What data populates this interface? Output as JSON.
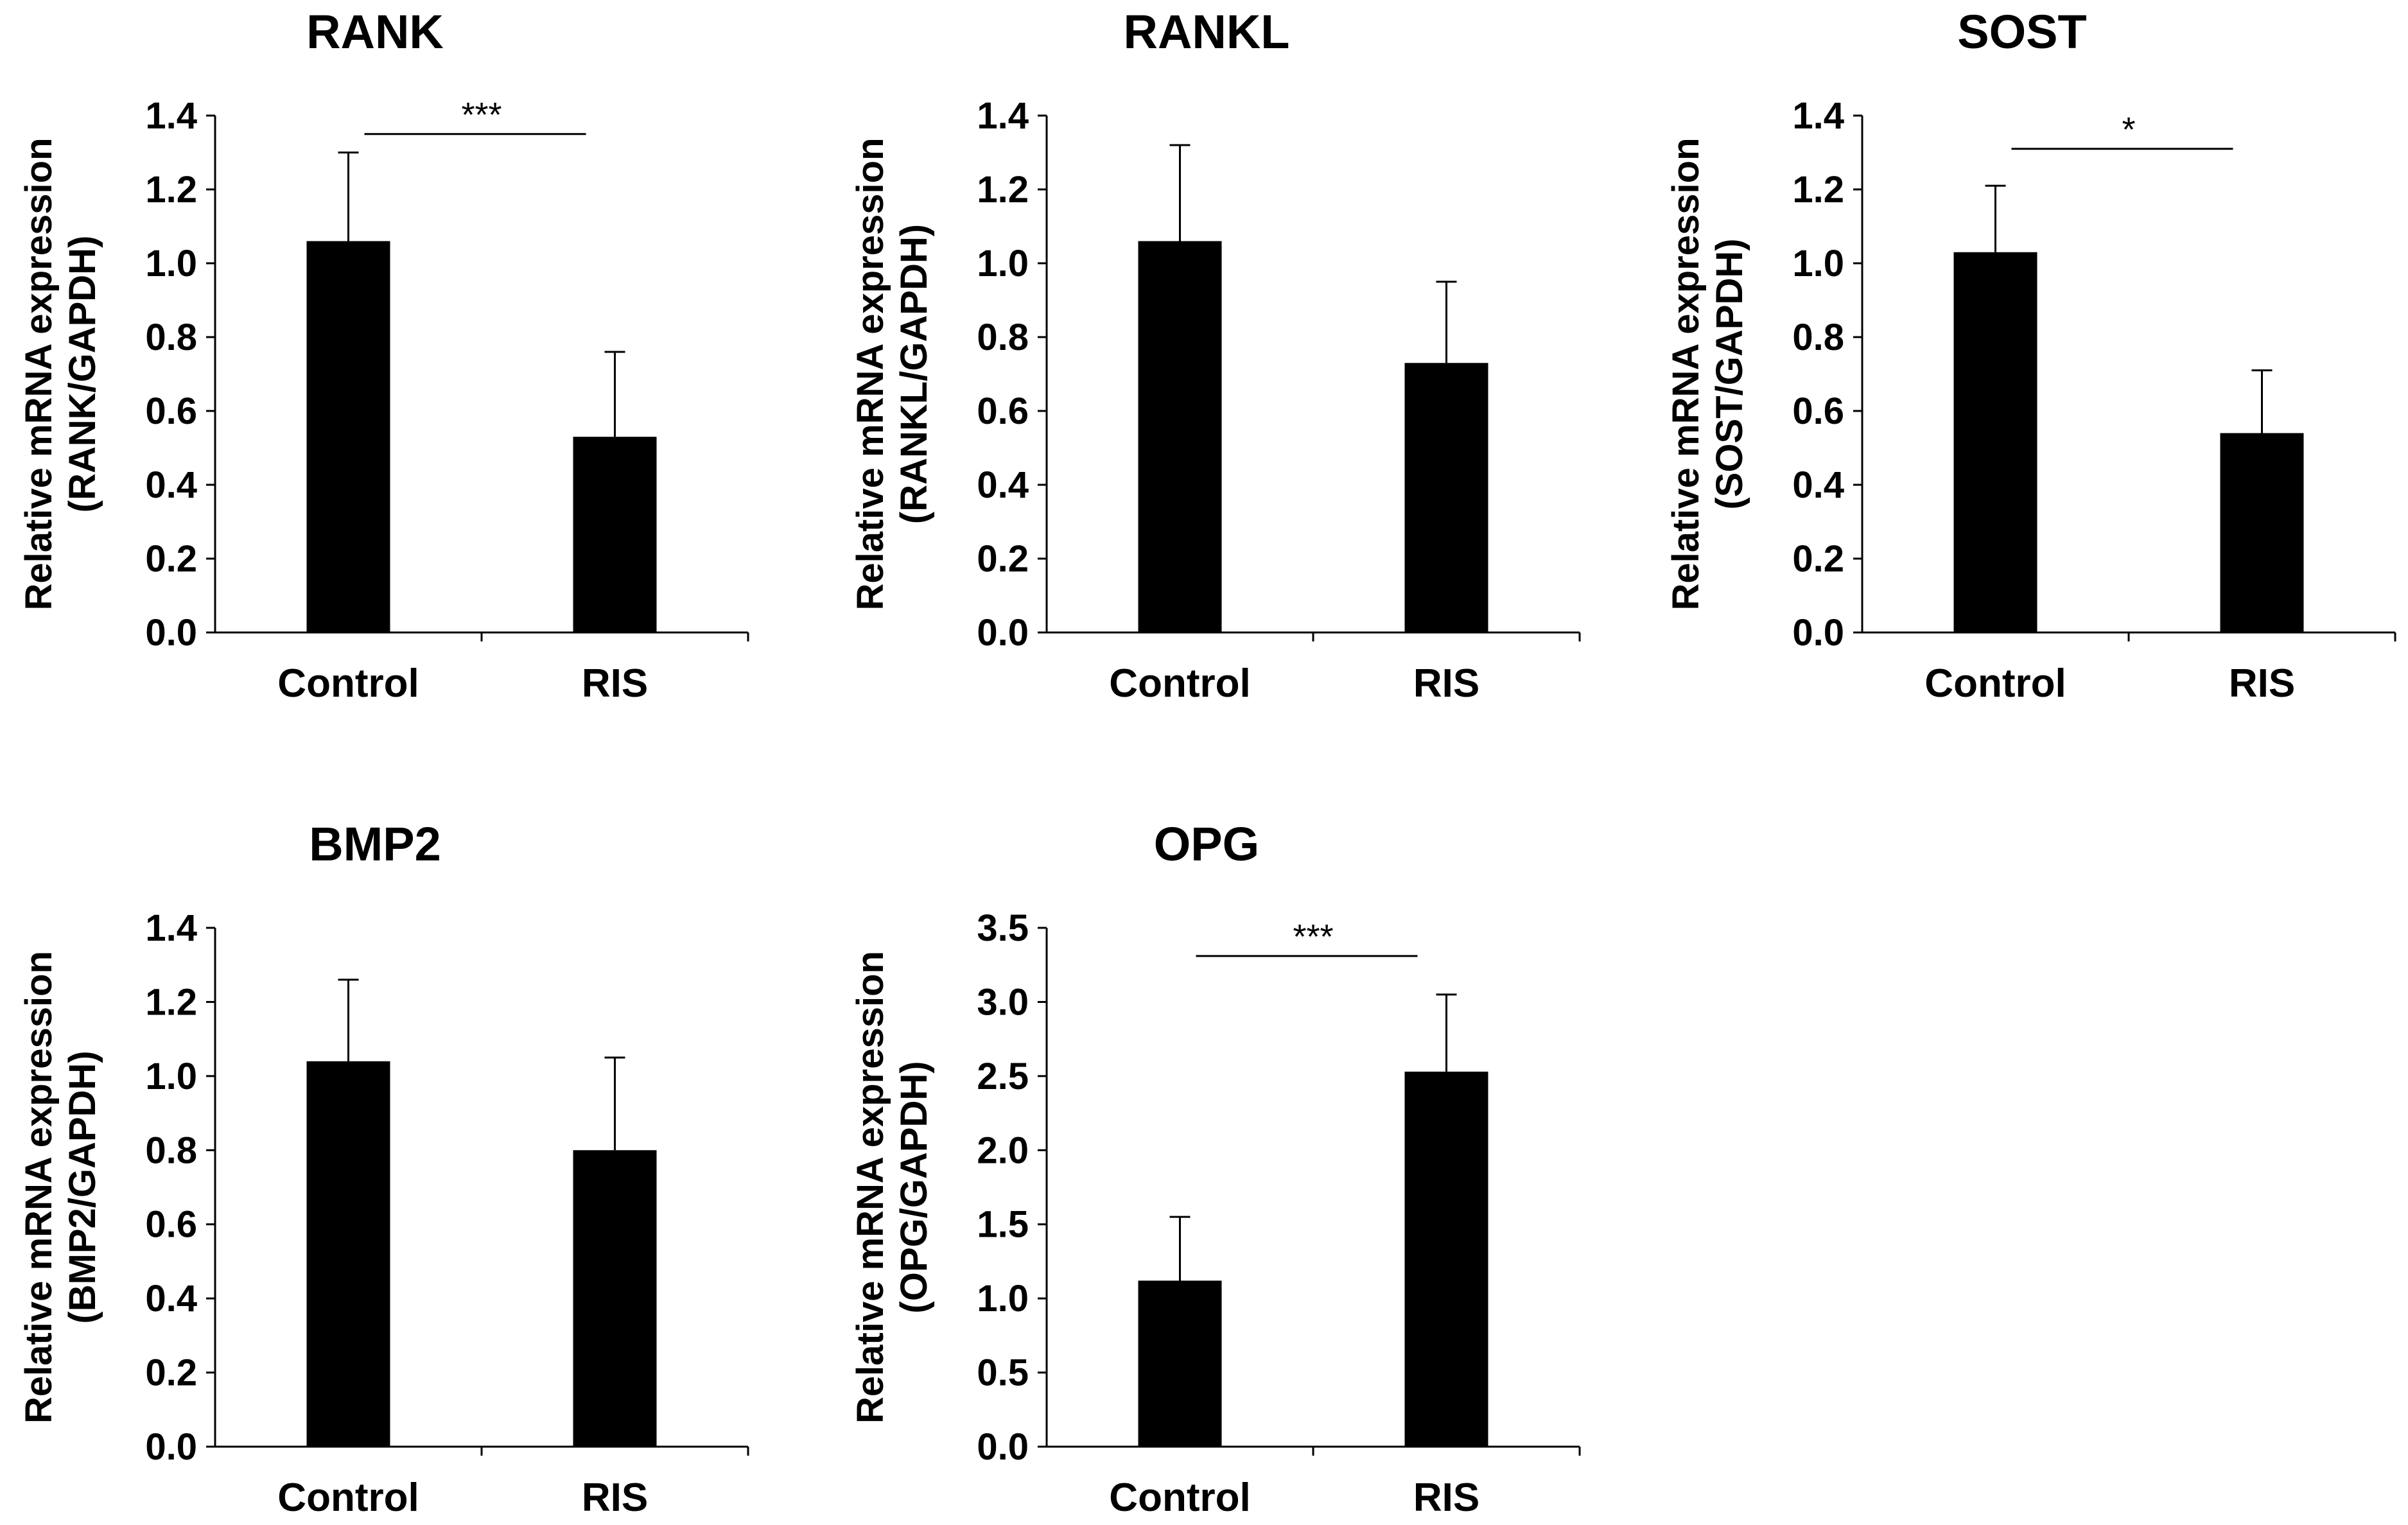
{
  "chart_data": [
    {
      "type": "bar",
      "title": "RANK",
      "categories": [
        "Control",
        "RIS"
      ],
      "values": [
        1.06,
        0.53
      ],
      "errors": [
        0.24,
        0.23
      ],
      "ylabel_lines": [
        "Relative mRNA expression",
        "(RANK/GAPDH)"
      ],
      "ylim": [
        0,
        1.4
      ],
      "yticks": [
        "0.0",
        "0.2",
        "0.4",
        "0.6",
        "0.8",
        "1.0",
        "1.2",
        "1.4"
      ],
      "significance": {
        "label": "***",
        "level": 1.35
      }
    },
    {
      "type": "bar",
      "title": "RANKL",
      "categories": [
        "Control",
        "RIS"
      ],
      "values": [
        1.06,
        0.73
      ],
      "errors": [
        0.26,
        0.22
      ],
      "ylabel_lines": [
        "Relative mRNA expression",
        "(RANKL/GAPDH)"
      ],
      "ylim": [
        0,
        1.4
      ],
      "yticks": [
        "0.0",
        "0.2",
        "0.4",
        "0.6",
        "0.8",
        "1.0",
        "1.2",
        "1.4"
      ],
      "significance": null
    },
    {
      "type": "bar",
      "title": "SOST",
      "categories": [
        "Control",
        "RIS"
      ],
      "values": [
        1.03,
        0.54
      ],
      "errors": [
        0.18,
        0.17
      ],
      "ylabel_lines": [
        "Relative mRNA expression",
        "(SOST/GAPDH)"
      ],
      "ylim": [
        0,
        1.4
      ],
      "yticks": [
        "0.0",
        "0.2",
        "0.4",
        "0.6",
        "0.8",
        "1.0",
        "1.2",
        "1.4"
      ],
      "significance": {
        "label": "*",
        "level": 1.31
      }
    },
    {
      "type": "bar",
      "title": "BMP2",
      "categories": [
        "Control",
        "RIS"
      ],
      "values": [
        1.04,
        0.8
      ],
      "errors": [
        0.22,
        0.25
      ],
      "ylabel_lines": [
        "Relative mRNA expression",
        "(BMP2/GAPDH)"
      ],
      "ylim": [
        0,
        1.4
      ],
      "yticks": [
        "0.0",
        "0.2",
        "0.4",
        "0.6",
        "0.8",
        "1.0",
        "1.2",
        "1.4"
      ],
      "significance": null
    },
    {
      "type": "bar",
      "title": "OPG",
      "categories": [
        "Control",
        "RIS"
      ],
      "values": [
        1.12,
        2.53
      ],
      "errors": [
        0.43,
        0.52
      ],
      "ylabel_lines": [
        "Relative mRNA expression",
        "(OPG/GAPDH)"
      ],
      "ylim": [
        0,
        3.5
      ],
      "yticks": [
        "0.0",
        "0.5",
        "1.0",
        "1.5",
        "2.0",
        "2.5",
        "3.0",
        "3.5"
      ],
      "significance": {
        "label": "***",
        "level": 3.31
      }
    }
  ]
}
